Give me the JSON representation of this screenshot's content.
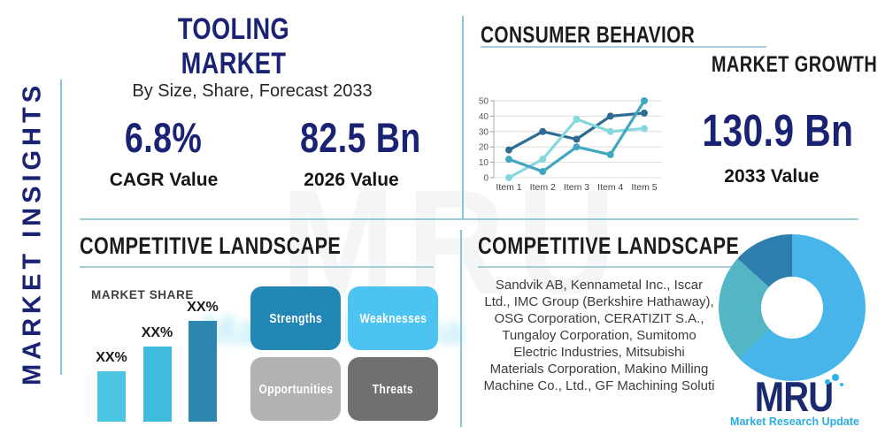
{
  "sidebar": {
    "vertical_title": "MARKET INSIGHTS"
  },
  "top_left": {
    "title": "TOOLING MARKET",
    "subtitle": "By Size, Share, Forecast 2033",
    "kpi_cagr": {
      "value": "6.8%",
      "label": "CAGR Value"
    },
    "kpi_2026": {
      "value": "82.5 Bn",
      "label": "2026 Value"
    }
  },
  "top_right": {
    "heading": "CONSUMER BEHAVIOR",
    "subheading": "MARKET GROWTH",
    "kpi_2033": {
      "value": "130.9 Bn",
      "label": "2033 Value"
    }
  },
  "bottom_left": {
    "heading": "COMPETITIVE LANDSCAPE",
    "swot": [
      {
        "label": "Strengths",
        "color": "#2387b5"
      },
      {
        "label": "Weaknesses",
        "color": "#4cc3f1"
      },
      {
        "label": "Opportunities",
        "color": "#b2b2b2"
      },
      {
        "label": "Threats",
        "color": "#707070"
      }
    ]
  },
  "bottom_right": {
    "heading": "COMPETITIVE LANDSCAPE",
    "companies_lines": [
      "Sandvik AB, Kennametal Inc., Iscar",
      "Ltd., IMC Group (Berkshire Hathaway),",
      "OSG Corporation, CERATIZIT S.A.,",
      "Tungaloy Corporation, Sumitomo",
      "Electric Industries, Mitsubishi",
      "Materials Corporation, Makino Milling",
      "Machine Co., Ltd., GF Machining Soluti"
    ]
  },
  "logo": {
    "text": "MRU",
    "tagline": "Market Research Update",
    "navy": "#1b2a6e",
    "cyan": "#29aede"
  },
  "watermark": {
    "big": "MRU",
    "blur_text": "Market Research"
  },
  "colors": {
    "navy": "#1a2273",
    "separator": "#8cc5da",
    "underline": "#a5ced9"
  },
  "chart_data": [
    {
      "id": "consumer-behavior-line",
      "type": "line",
      "categories": [
        "Item 1",
        "Item 2",
        "Item 3",
        "Item 4",
        "Item 5"
      ],
      "series": [
        {
          "name": "series-dark-blue",
          "color": "#2e6d92",
          "values": [
            18,
            30,
            25,
            40,
            42
          ]
        },
        {
          "name": "series-teal",
          "color": "#41a6bf",
          "values": [
            12,
            4,
            20,
            15,
            50
          ]
        },
        {
          "name": "series-light-cyan",
          "color": "#85d8dc",
          "values": [
            0,
            12,
            38,
            30,
            32
          ]
        }
      ],
      "ylim": [
        0,
        50
      ],
      "yticks": [
        0,
        10,
        20,
        30,
        40,
        50
      ],
      "grid": true,
      "legend": "none"
    },
    {
      "id": "market-share-bar",
      "type": "bar",
      "title": "MARKET SHARE",
      "categories": [
        "company-1",
        "company-2",
        "company-3"
      ],
      "values": [
        50,
        75,
        100
      ],
      "value_labels": [
        "XX%",
        "XX%",
        "XX%"
      ],
      "colors": [
        "#4cc5e2",
        "#3fbcdc",
        "#2d86b0"
      ],
      "ylabel": "",
      "note": "bars unlabeled in source; XX% placeholders shown"
    },
    {
      "id": "company-share-donut",
      "type": "pie",
      "segments": [
        {
          "name": "segment-light-blue",
          "pct": 62.8,
          "color": "#47b5e9"
        },
        {
          "name": "segment-teal",
          "pct": 23.9,
          "color": "#54b6c4"
        },
        {
          "name": "segment-dark-blue",
          "pct": 13.3,
          "color": "#2e7ead"
        }
      ],
      "donut_hole_ratio": 0.42,
      "legend": "none"
    }
  ]
}
